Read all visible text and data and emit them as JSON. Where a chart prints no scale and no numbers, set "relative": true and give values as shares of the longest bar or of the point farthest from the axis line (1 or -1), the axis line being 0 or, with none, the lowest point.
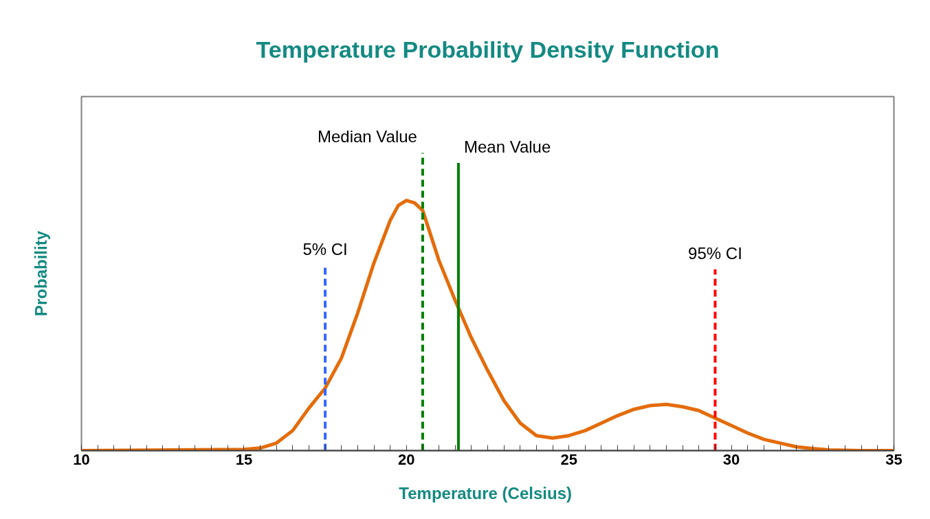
{
  "chart_data": {
    "type": "line",
    "title": "Temperature Probability Density Function",
    "xlabel": "Temperature  (Celsius)",
    "ylabel": "Probability",
    "relative": true,
    "xlim": [
      10,
      35
    ],
    "xticks": [
      10,
      {
        "value": 10.5,
        "label": null
      },
      {
        "value": 11,
        "label": null
      },
      {
        "value": 11.5,
        "label": null
      },
      {
        "value": 12,
        "label": null
      },
      {
        "value": 12.5,
        "label": null
      },
      {
        "value": 13,
        "label": null
      },
      {
        "value": 13.5,
        "label": null
      },
      {
        "value": 14,
        "label": null
      },
      {
        "value": 14.5,
        "label": null
      },
      15,
      {
        "value": 15.5,
        "label": null
      },
      {
        "value": 16,
        "label": null
      },
      {
        "value": 16.5,
        "label": null
      },
      {
        "value": 17,
        "label": null
      },
      {
        "value": 17.5,
        "label": null
      },
      {
        "value": 18,
        "label": null
      },
      {
        "value": 18.5,
        "label": null
      },
      {
        "value": 19,
        "label": null
      },
      {
        "value": 19.5,
        "label": null
      },
      20,
      {
        "value": 20.5,
        "label": null
      },
      {
        "value": 21,
        "label": null
      },
      {
        "value": 21.5,
        "label": null
      },
      {
        "value": 22,
        "label": null
      },
      {
        "value": 22.5,
        "label": null
      },
      {
        "value": 23,
        "label": null
      },
      {
        "value": 23.5,
        "label": null
      },
      {
        "value": 24,
        "label": null
      },
      {
        "value": 24.5,
        "label": null
      },
      25,
      {
        "value": 25.5,
        "label": null
      },
      {
        "value": 26,
        "label": null
      },
      {
        "value": 26.5,
        "label": null
      },
      {
        "value": 27,
        "label": null
      },
      {
        "value": 27.5,
        "label": null
      },
      {
        "value": 28,
        "label": null
      },
      {
        "value": 28.5,
        "label": null
      },
      {
        "value": 29,
        "label": null
      },
      {
        "value": 29.5,
        "label": null
      },
      30,
      {
        "value": 30.5,
        "label": null
      },
      {
        "value": 31,
        "label": null
      },
      {
        "value": 31.5,
        "label": null
      },
      {
        "value": 32,
        "label": null
      },
      {
        "value": 32.5,
        "label": null
      },
      {
        "value": 33,
        "label": null
      },
      {
        "value": 33.5,
        "label": null
      },
      {
        "value": 34,
        "label": null
      },
      {
        "value": 34.5,
        "label": null
      },
      35
    ],
    "tick_labels": "x",
    "grid": false,
    "line_style": "solid",
    "marker": "none",
    "series": [
      {
        "color": "#e46c0a",
        "x": [
          10,
          15,
          15.5,
          16,
          16.5,
          17,
          17.5,
          18,
          18.5,
          19,
          19.5,
          19.75,
          20,
          20.25,
          20.5,
          21,
          21.5,
          22,
          22.5,
          23,
          23.5,
          24,
          24.5,
          25,
          25.5,
          26,
          26.5,
          27,
          27.5,
          28,
          28.5,
          29,
          29.5,
          30,
          30.5,
          31,
          31.5,
          32,
          32.5,
          33,
          34,
          35
        ],
        "values": [
          0,
          0.005,
          0.01,
          0.03,
          0.08,
          0.17,
          0.25,
          0.37,
          0.55,
          0.75,
          0.92,
          0.98,
          1.0,
          0.99,
          0.96,
          0.76,
          0.6,
          0.45,
          0.32,
          0.2,
          0.11,
          0.06,
          0.05,
          0.06,
          0.08,
          0.11,
          0.14,
          0.165,
          0.18,
          0.185,
          0.175,
          0.16,
          0.13,
          0.1,
          0.07,
          0.045,
          0.03,
          0.015,
          0.008,
          0.003,
          0,
          0
        ]
      }
    ],
    "ref_lines": [
      {
        "axis": "x",
        "value": 17.5,
        "color": "#3366ff",
        "line_style": "dashed",
        "label": "5% CI"
      },
      {
        "axis": "x",
        "value": 20.5,
        "color": "#008000",
        "line_style": "dashed",
        "label": "Median Value"
      },
      {
        "axis": "x",
        "value": 21.6,
        "color": "#008000",
        "line_style": "solid",
        "label": "Mean Value"
      },
      {
        "axis": "x",
        "value": 29.5,
        "color": "#ff0000",
        "line_style": "dashed",
        "label": "95% CI"
      }
    ]
  }
}
